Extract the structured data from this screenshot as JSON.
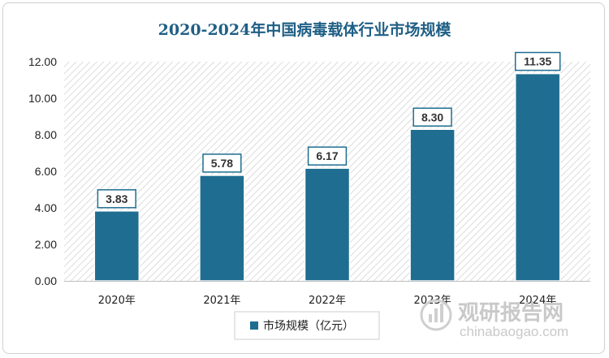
{
  "chart_data": {
    "type": "bar",
    "title": "2020-2024年中国病毒载体行业市场规模",
    "categories": [
      "2020年",
      "2021年",
      "2022年",
      "2023年",
      "2024年"
    ],
    "series": [
      {
        "name": "市场规模（亿元）",
        "values": [
          3.83,
          5.78,
          6.17,
          8.3,
          11.35
        ],
        "color": "#1f6e91"
      }
    ],
    "data_labels": [
      "3.83",
      "5.78",
      "6.17",
      "8.30",
      "11.35"
    ],
    "y_ticks": [
      "0.00",
      "2.00",
      "4.00",
      "6.00",
      "8.00",
      "10.00",
      "12.00"
    ],
    "ylim": [
      0,
      12
    ],
    "grid": false,
    "plot_background": "diagonal-hatch",
    "legend_position": "bottom"
  },
  "watermark": {
    "text_cn": "观研报告网",
    "text_en": "chinabaogao.com"
  }
}
